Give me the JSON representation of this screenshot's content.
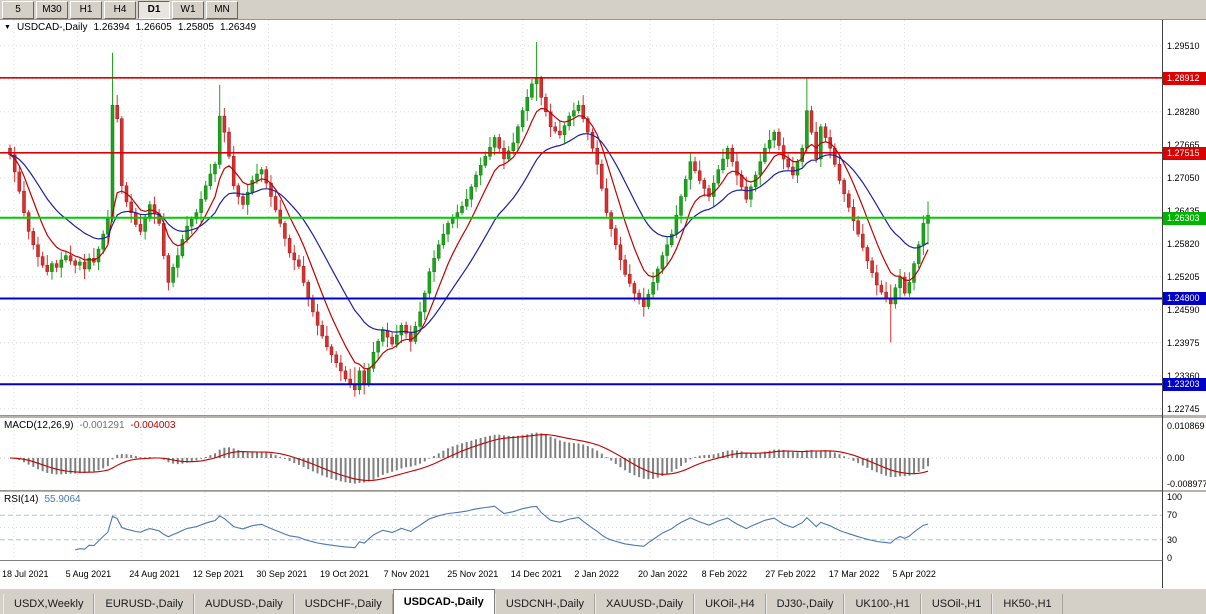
{
  "toolbar": {
    "timeframes": [
      {
        "label": "5",
        "active": false
      },
      {
        "label": "M30",
        "active": false
      },
      {
        "label": "H1",
        "active": false
      },
      {
        "label": "H4",
        "active": false
      },
      {
        "label": "D1",
        "active": true
      },
      {
        "label": "W1",
        "active": false
      },
      {
        "label": "MN",
        "active": false
      }
    ]
  },
  "chart": {
    "title": {
      "symbol": "USDCAD-,Daily",
      "open": "1.26394",
      "high": "1.26605",
      "low": "1.25805",
      "close": "1.26349"
    },
    "price_axis": {
      "ticks": [
        "1.29510",
        "1.28895",
        "1.28280",
        "1.27665",
        "1.27050",
        "1.26435",
        "1.25820",
        "1.25205",
        "1.24590",
        "1.23975",
        "1.23360",
        "1.22745"
      ],
      "badges": [
        {
          "value": "1.28912",
          "color": "#dc0000"
        },
        {
          "value": "1.27515",
          "color": "#dc0000"
        },
        {
          "value": "1.26303",
          "color": "#00b400"
        },
        {
          "value": "1.24800",
          "color": "#0000c8"
        },
        {
          "value": "1.23203",
          "color": "#0000c8"
        }
      ]
    },
    "levels": [
      {
        "price": 1.28912,
        "color": "#dc0000",
        "width": 1.6
      },
      {
        "price": 1.27515,
        "color": "#dc0000",
        "width": 1.6
      },
      {
        "price": 1.26303,
        "color": "#00cc00",
        "width": 2
      },
      {
        "price": 1.248,
        "color": "#0000c8",
        "width": 2
      },
      {
        "price": 1.23203,
        "color": "#0000c8",
        "width": 2
      }
    ]
  },
  "chart_data": {
    "type": "candlestick",
    "title": "USDCAD- Daily",
    "x_labels": [
      "18 Jul 2021",
      "5 Aug 2021",
      "24 Aug 2021",
      "12 Sep 2021",
      "30 Sep 2021",
      "19 Oct 2021",
      "7 Nov 2021",
      "25 Nov 2021",
      "14 Dec 2021",
      "2 Jan 2022",
      "20 Jan 2022",
      "8 Feb 2022",
      "27 Feb 2022",
      "17 Mar 2022",
      "5 Apr 2022"
    ],
    "ylim": [
      1.22745,
      1.2951
    ],
    "first_open": 1.276,
    "closes": [
      1.2748,
      1.2716,
      1.268,
      1.264,
      1.2605,
      1.258,
      1.2558,
      1.2542,
      1.253,
      1.2545,
      1.2538,
      1.2552,
      1.256,
      1.255,
      1.2542,
      1.2548,
      1.2535,
      1.2555,
      1.2548,
      1.2572,
      1.26,
      1.263,
      1.284,
      1.2815,
      1.269,
      1.266,
      1.264,
      1.2618,
      1.2605,
      1.2632,
      1.2655,
      1.2638,
      1.262,
      1.256,
      1.251,
      1.2538,
      1.256,
      1.259,
      1.2615,
      1.2628,
      1.264,
      1.2665,
      1.269,
      1.2712,
      1.273,
      1.282,
      1.279,
      1.2745,
      1.269,
      1.267,
      1.2655,
      1.2678,
      1.27,
      1.2712,
      1.272,
      1.2695,
      1.267,
      1.2645,
      1.262,
      1.2592,
      1.2565,
      1.2552,
      1.254,
      1.251,
      1.248,
      1.2455,
      1.243,
      1.241,
      1.239,
      1.2375,
      1.236,
      1.2345,
      1.233,
      1.232,
      1.231,
      1.2345,
      1.232,
      1.235,
      1.238,
      1.24,
      1.242,
      1.2408,
      1.2395,
      1.2412,
      1.243,
      1.2415,
      1.24,
      1.2428,
      1.2455,
      1.249,
      1.253,
      1.2555,
      1.258,
      1.26,
      1.262,
      1.263,
      1.264,
      1.2652,
      1.2665,
      1.2688,
      1.271,
      1.2728,
      1.2745,
      1.2762,
      1.278,
      1.276,
      1.274,
      1.2755,
      1.277,
      1.28,
      1.283,
      1.2855,
      1.288,
      1.289,
      1.2855,
      1.2828,
      1.28,
      1.2792,
      1.2785,
      1.2802,
      1.282,
      1.283,
      1.284,
      1.2815,
      1.279,
      1.276,
      1.273,
      1.2685,
      1.264,
      1.261,
      1.258,
      1.2552,
      1.2525,
      1.2508,
      1.249,
      1.2478,
      1.2465,
      1.2488,
      1.251,
      1.2535,
      1.256,
      1.258,
      1.26,
      1.2635,
      1.267,
      1.2702,
      1.2735,
      1.2718,
      1.27,
      1.2685,
      1.267,
      1.2695,
      1.272,
      1.274,
      1.276,
      1.2735,
      1.271,
      1.2688,
      1.2665,
      1.2688,
      1.271,
      1.2735,
      1.276,
      1.2775,
      1.279,
      1.2765,
      1.274,
      1.2725,
      1.271,
      1.2735,
      1.276,
      1.283,
      1.279,
      1.274,
      1.28,
      1.278,
      1.276,
      1.273,
      1.27,
      1.2675,
      1.265,
      1.2625,
      1.26,
      1.2575,
      1.255,
      1.2528,
      1.2505,
      1.2492,
      1.248,
      1.247,
      1.25,
      1.252,
      1.249,
      1.251,
      1.2545,
      1.258,
      1.262,
      1.26349
    ],
    "wick_overrides": {
      "22": [
        1.2938,
        1.2622
      ],
      "45": [
        1.2878,
        1.2722
      ],
      "74": [
        1.2352,
        1.2297
      ],
      "113": [
        1.2958,
        1.2848
      ],
      "136": [
        1.25,
        1.2446
      ],
      "171": [
        1.2892,
        1.2752
      ],
      "189": [
        1.2506,
        1.2398
      ],
      "197": [
        1.2661,
        1.2581
      ]
    },
    "moving_averages": [
      {
        "name": "fast-ma",
        "period": 8,
        "color": "#c00000"
      },
      {
        "name": "slow-ma",
        "period": 21,
        "color": "#2020a0"
      }
    ]
  },
  "macd": {
    "name": "MACD(12,26,9)",
    "main_value": "-0.001291",
    "signal_value": "-0.004003",
    "axis": [
      "0.010869",
      "0.00",
      "-0.008977"
    ],
    "histogram_color": "#808080",
    "signal_color": "#c00000"
  },
  "rsi": {
    "name": "RSI(14)",
    "value": "55.9064",
    "axis": [
      "100",
      "70",
      "30",
      "0"
    ],
    "levels": [
      70,
      30
    ],
    "line_color": "#4a7ab5"
  },
  "tabs": [
    {
      "label": "USDX,Weekly",
      "active": false
    },
    {
      "label": "EURUSD-,Daily",
      "active": false
    },
    {
      "label": "AUDUSD-,Daily",
      "active": false
    },
    {
      "label": "USDCHF-,Daily",
      "active": false
    },
    {
      "label": "USDCAD-,Daily",
      "active": true
    },
    {
      "label": "USDCNH-,Daily",
      "active": false
    },
    {
      "label": "XAUUSD-,Daily",
      "active": false
    },
    {
      "label": "UKOil-,H4",
      "active": false
    },
    {
      "label": "DJ30-,Daily",
      "active": false
    },
    {
      "label": "UK100-,H1",
      "active": false
    },
    {
      "label": "USOil-,H1",
      "active": false
    },
    {
      "label": "HK50-,H1",
      "active": false
    }
  ],
  "colors": {
    "up": "#1ca41c",
    "up_stroke": "#0c7a0c",
    "down": "#d93030",
    "down_stroke": "#a51515",
    "grid": "#dcdcdc",
    "background": "#ffffff",
    "chrome": "#d4d0c8"
  }
}
